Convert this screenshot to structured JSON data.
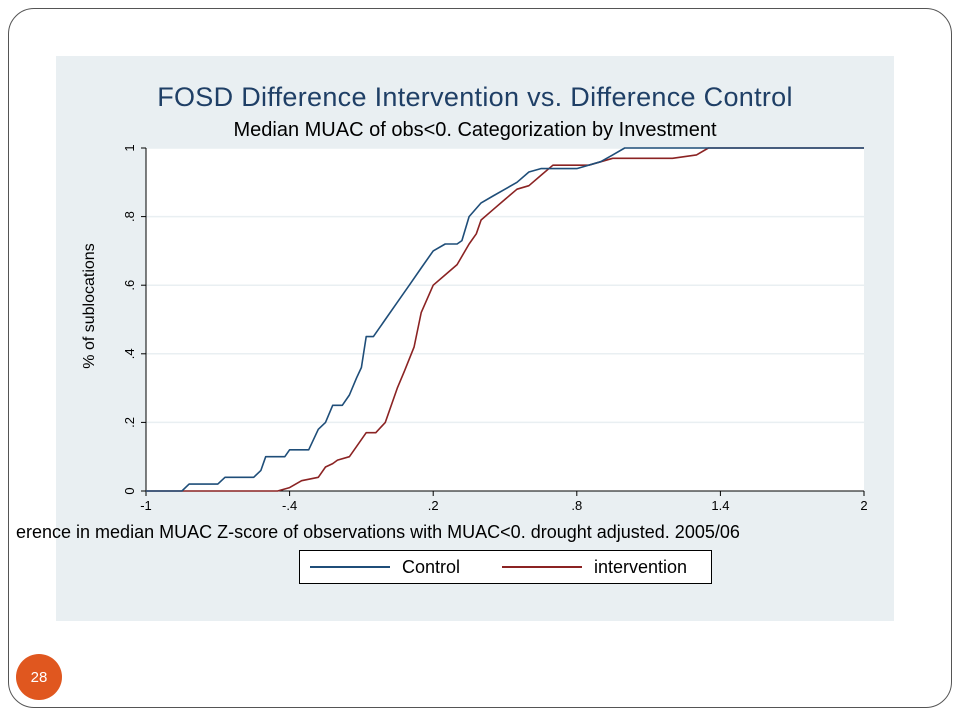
{
  "slide": {
    "page_number": "28"
  },
  "colors": {
    "panel_bg": "#e9eff2",
    "control": "#1f4e79",
    "intervention": "#8b2323",
    "accent": "#e0571f"
  },
  "chart_data": {
    "type": "line",
    "title": "FOSD Difference Intervention vs. Difference Control",
    "subtitle": "Median MUAC of obs<0. Categorization by Investment",
    "xlabel": "erence in median MUAC Z-score of observations with MUAC<0. drought adjusted. 2005/06",
    "ylabel": "% of sublocations",
    "xlim": [
      -1,
      2
    ],
    "ylim": [
      0,
      1
    ],
    "x_ticks": [
      "-1",
      "-.4",
      ".2",
      ".8",
      "1.4",
      "2"
    ],
    "x_tick_values": [
      -1,
      -0.4,
      0.2,
      0.8,
      1.4,
      2
    ],
    "y_ticks": [
      "0",
      ".2",
      ".4",
      ".6",
      ".8",
      "1"
    ],
    "y_tick_values": [
      0,
      0.2,
      0.4,
      0.6,
      0.8,
      1
    ],
    "grid": true,
    "legend_position": "bottom",
    "series": [
      {
        "name": "Control",
        "color": "#1f4e79",
        "points": [
          [
            -1,
            0
          ],
          [
            -0.85,
            0
          ],
          [
            -0.82,
            0.02
          ],
          [
            -0.7,
            0.02
          ],
          [
            -0.67,
            0.04
          ],
          [
            -0.55,
            0.04
          ],
          [
            -0.52,
            0.06
          ],
          [
            -0.5,
            0.1
          ],
          [
            -0.42,
            0.1
          ],
          [
            -0.4,
            0.12
          ],
          [
            -0.32,
            0.12
          ],
          [
            -0.28,
            0.18
          ],
          [
            -0.25,
            0.2
          ],
          [
            -0.22,
            0.25
          ],
          [
            -0.18,
            0.25
          ],
          [
            -0.15,
            0.28
          ],
          [
            -0.12,
            0.33
          ],
          [
            -0.1,
            0.36
          ],
          [
            -0.08,
            0.45
          ],
          [
            -0.05,
            0.45
          ],
          [
            0.0,
            0.5
          ],
          [
            0.05,
            0.55
          ],
          [
            0.1,
            0.6
          ],
          [
            0.15,
            0.65
          ],
          [
            0.2,
            0.7
          ],
          [
            0.25,
            0.72
          ],
          [
            0.3,
            0.72
          ],
          [
            0.32,
            0.73
          ],
          [
            0.35,
            0.8
          ],
          [
            0.4,
            0.84
          ],
          [
            0.45,
            0.86
          ],
          [
            0.5,
            0.88
          ],
          [
            0.55,
            0.9
          ],
          [
            0.6,
            0.93
          ],
          [
            0.65,
            0.94
          ],
          [
            0.7,
            0.94
          ],
          [
            0.8,
            0.94
          ],
          [
            0.9,
            0.96
          ],
          [
            0.95,
            0.98
          ],
          [
            1.0,
            1.0
          ],
          [
            1.4,
            1.0
          ],
          [
            2.0,
            1.0
          ]
        ]
      },
      {
        "name": "intervention",
        "color": "#8b2323",
        "points": [
          [
            -1,
            0
          ],
          [
            -0.45,
            0
          ],
          [
            -0.4,
            0.01
          ],
          [
            -0.35,
            0.03
          ],
          [
            -0.28,
            0.04
          ],
          [
            -0.25,
            0.07
          ],
          [
            -0.22,
            0.08
          ],
          [
            -0.2,
            0.09
          ],
          [
            -0.15,
            0.1
          ],
          [
            -0.12,
            0.13
          ],
          [
            -0.08,
            0.17
          ],
          [
            -0.04,
            0.17
          ],
          [
            0.0,
            0.2
          ],
          [
            0.05,
            0.3
          ],
          [
            0.08,
            0.35
          ],
          [
            0.12,
            0.42
          ],
          [
            0.15,
            0.52
          ],
          [
            0.2,
            0.6
          ],
          [
            0.25,
            0.63
          ],
          [
            0.3,
            0.66
          ],
          [
            0.35,
            0.72
          ],
          [
            0.38,
            0.75
          ],
          [
            0.4,
            0.79
          ],
          [
            0.45,
            0.82
          ],
          [
            0.5,
            0.85
          ],
          [
            0.55,
            0.88
          ],
          [
            0.6,
            0.89
          ],
          [
            0.65,
            0.92
          ],
          [
            0.7,
            0.95
          ],
          [
            0.85,
            0.95
          ],
          [
            0.95,
            0.97
          ],
          [
            1.2,
            0.97
          ],
          [
            1.3,
            0.98
          ],
          [
            1.35,
            1.0
          ],
          [
            1.4,
            1.0
          ],
          [
            2.0,
            1.0
          ]
        ]
      }
    ]
  }
}
